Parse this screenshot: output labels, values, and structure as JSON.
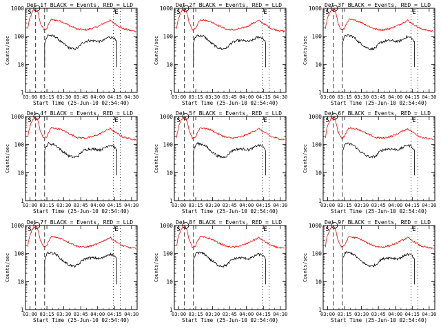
{
  "chart_data": {
    "type": "line",
    "layout": "3x3 grid of identical log-scale rate plots",
    "panel_titles": [
      "Det 1f BLACK = Events, RED = LLD",
      "Det 2f BLACK = Events, RED = LLD",
      "Det 3f BLACK = Events, RED = LLD",
      "Det 4f BLACK = Events, RED = LLD",
      "Det 5f BLACK = Events, RED = LLD",
      "Det 6f BLACK = Events, RED = LLD",
      "Det 7f BLACK = Events, RED = LLD",
      "Det 8f BLACK = Events, RED = LLD",
      "Det 9f BLACK = Events, RED = LLD"
    ],
    "xlabel": "Start Time (25-Jun-10 02:54:40)",
    "ylabel": "Counts/sec",
    "y_scale": "log",
    "ylim": [
      1,
      1000
    ],
    "y_tick_labels": [
      "1",
      "10",
      "100",
      "1000"
    ],
    "x_tick_labels": [
      "03:00",
      "03:15",
      "03:30",
      "03:45",
      "04:00",
      "04:15",
      "04:30"
    ],
    "x_tick_minutes": [
      3,
      18,
      33,
      48,
      63,
      78,
      93
    ],
    "x_range_minutes": [
      -1,
      98
    ],
    "dashed_vlines_minutes": [
      8,
      16
    ],
    "dotted_vlines_minutes": [
      77,
      83
    ],
    "markers": [
      "S",
      "E"
    ],
    "series": [
      {
        "name": "Events",
        "color": "#000000"
      },
      {
        "name": "LLD",
        "color": "#ff0000"
      }
    ],
    "lld_profile_x_minutes": [
      1,
      6,
      9,
      12,
      15,
      18,
      22,
      30,
      38,
      45,
      52,
      58,
      64,
      70,
      74,
      77,
      81,
      85,
      92,
      97
    ],
    "lld_profile_y": [
      180,
      850,
      900,
      300,
      170,
      190,
      400,
      350,
      240,
      180,
      170,
      190,
      230,
      310,
      370,
      300,
      240,
      190,
      160,
      150
    ],
    "events_profile_x_minutes": [
      16,
      19,
      25,
      31,
      37,
      42,
      46,
      50,
      55,
      60,
      65,
      69,
      73,
      77,
      80
    ],
    "events_profile_y": [
      60,
      110,
      100,
      60,
      40,
      35,
      40,
      60,
      70,
      70,
      65,
      75,
      95,
      90,
      60
    ]
  }
}
